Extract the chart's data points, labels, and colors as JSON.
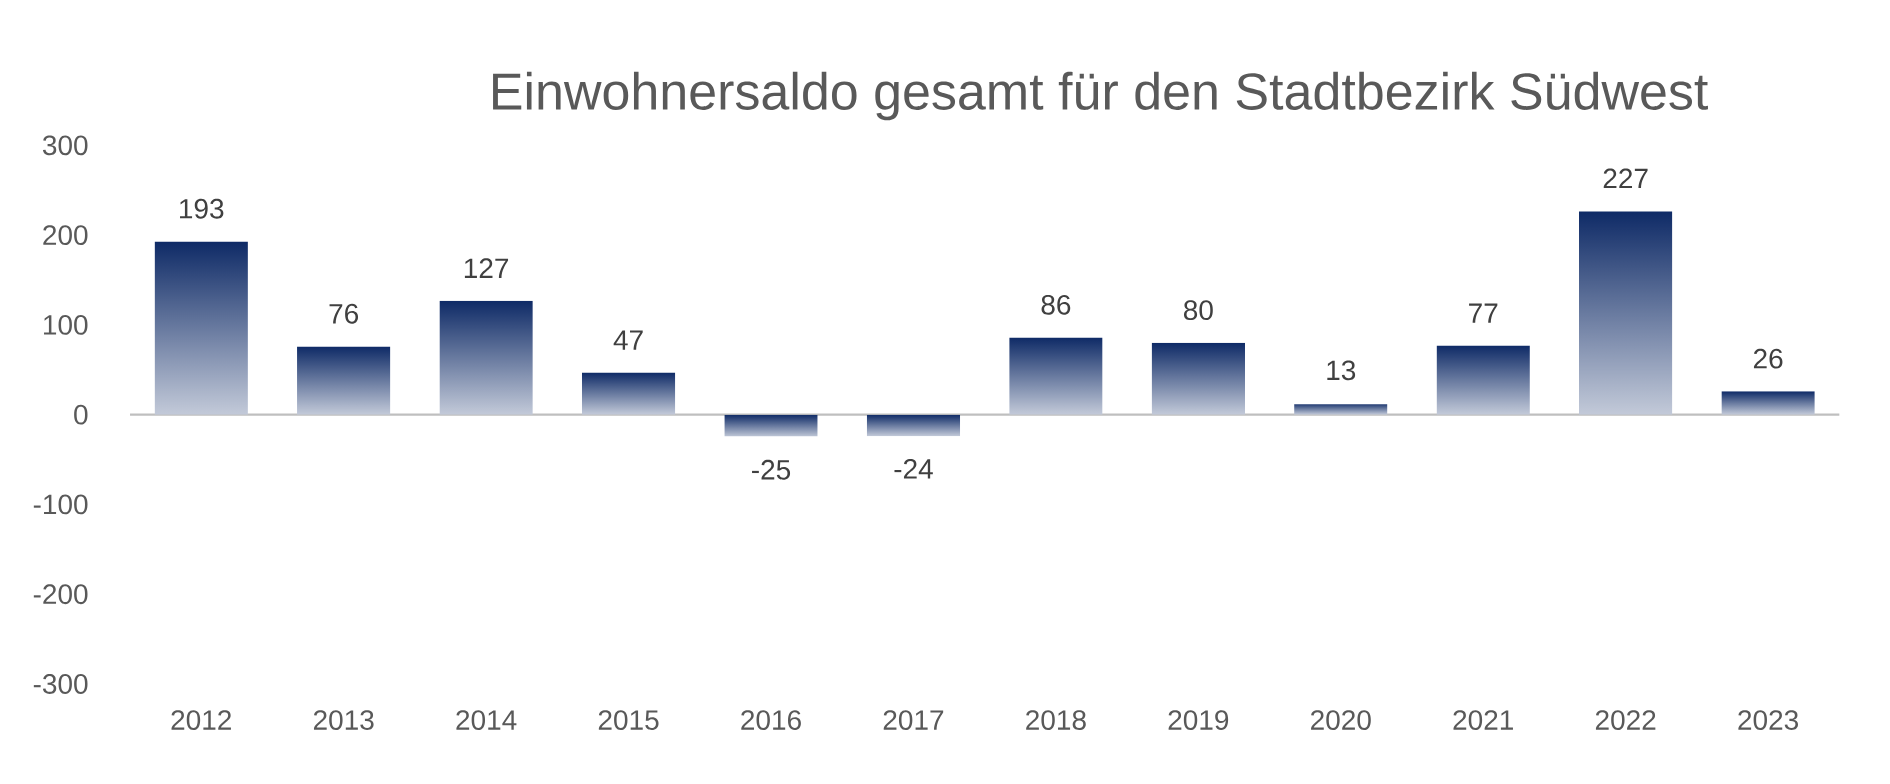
{
  "chart_data": {
    "type": "bar",
    "title": "Einwohnersaldo gesamt für den Stadtbezirk Südwest",
    "categories": [
      "2012",
      "2013",
      "2014",
      "2015",
      "2016",
      "2017",
      "2018",
      "2019",
      "2020",
      "2021",
      "2022",
      "2023"
    ],
    "values": [
      193,
      76,
      127,
      47,
      -25,
      -24,
      86,
      80,
      13,
      77,
      227,
      26
    ],
    "color": "#0e2a66",
    "ylim": [
      -300,
      300
    ],
    "yticks": [
      -300,
      -200,
      -100,
      0,
      100,
      200,
      300
    ],
    "data_labels": true
  }
}
